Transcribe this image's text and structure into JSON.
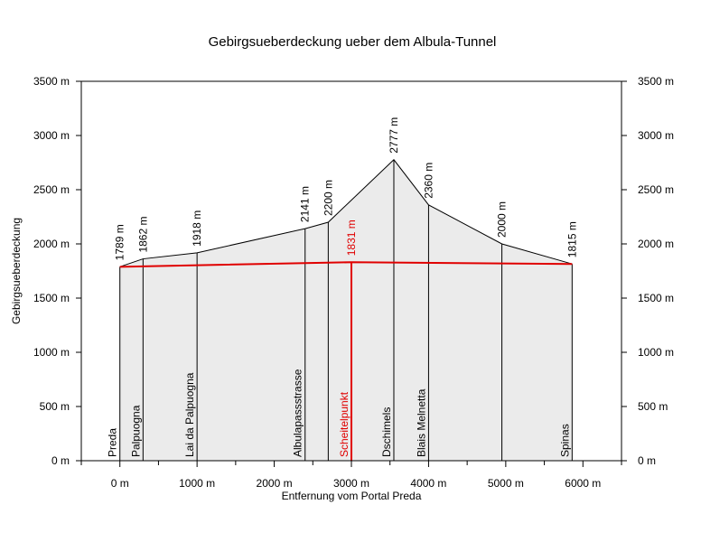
{
  "chart_data": {
    "type": "area",
    "title": "Gebirgsueberdeckung ueber dem Albula-Tunnel",
    "xlabel": "Entfernung vom Portal Preda",
    "ylabel": "Gebirgsueberdeckung",
    "xlim": [
      -500,
      6500
    ],
    "ylim": [
      0,
      3500
    ],
    "xticks": [
      0,
      1000,
      2000,
      3000,
      4000,
      5000,
      6000
    ],
    "xtick_labels": [
      "0 m",
      "1000 m",
      "2000 m",
      "3000 m",
      "4000 m",
      "5000 m",
      "6000 m"
    ],
    "yticks": [
      0,
      500,
      1000,
      1500,
      2000,
      2500,
      3000,
      3500
    ],
    "ytick_labels": [
      "0 m",
      "500 m",
      "1000 m",
      "1500 m",
      "2000 m",
      "2500 m",
      "3000 m",
      "3500 m"
    ],
    "surface": [
      {
        "x": 0,
        "y": 1789
      },
      {
        "x": 300,
        "y": 1862
      },
      {
        "x": 1000,
        "y": 1918
      },
      {
        "x": 2400,
        "y": 2141
      },
      {
        "x": 2700,
        "y": 2200
      },
      {
        "x": 3550,
        "y": 2777
      },
      {
        "x": 4000,
        "y": 2360
      },
      {
        "x": 4950,
        "y": 2000
      },
      {
        "x": 5860,
        "y": 1815
      }
    ],
    "tunnel": [
      {
        "x": 0,
        "y": 1789
      },
      {
        "x": 3000,
        "y": 1831
      },
      {
        "x": 5860,
        "y": 1815
      }
    ],
    "points": [
      {
        "x": 0,
        "y": 1789,
        "height_label": "1789 m",
        "name": "Preda",
        "highlight": false
      },
      {
        "x": 300,
        "y": 1862,
        "height_label": "1862 m",
        "name": "Palpuogna",
        "highlight": false
      },
      {
        "x": 1000,
        "y": 1918,
        "height_label": "1918 m",
        "name": "Lai da Palpuogna",
        "highlight": false
      },
      {
        "x": 2400,
        "y": 2141,
        "height_label": "2141 m",
        "name": "Albulapassstrasse",
        "highlight": false
      },
      {
        "x": 2700,
        "y": 2200,
        "height_label": "2200 m",
        "name": "",
        "highlight": false
      },
      {
        "x": 3000,
        "y": 1831,
        "height_label": "1831 m",
        "name": "Scheitelpunkt",
        "highlight": true
      },
      {
        "x": 3550,
        "y": 2777,
        "height_label": "2777 m",
        "name": "Dschimels",
        "highlight": false
      },
      {
        "x": 4000,
        "y": 2360,
        "height_label": "2360 m",
        "name": "Blais Melnetta",
        "highlight": false
      },
      {
        "x": 4950,
        "y": 2000,
        "height_label": "2000 m",
        "name": "",
        "highlight": false
      },
      {
        "x": 5860,
        "y": 1815,
        "height_label": "1815 m",
        "name": "Spinas",
        "highlight": false
      }
    ],
    "colors": {
      "area_fill": "#ebebeb",
      "line": "#000000",
      "tunnel": "#e00000",
      "highlight": "#e00000"
    },
    "grid": false
  }
}
